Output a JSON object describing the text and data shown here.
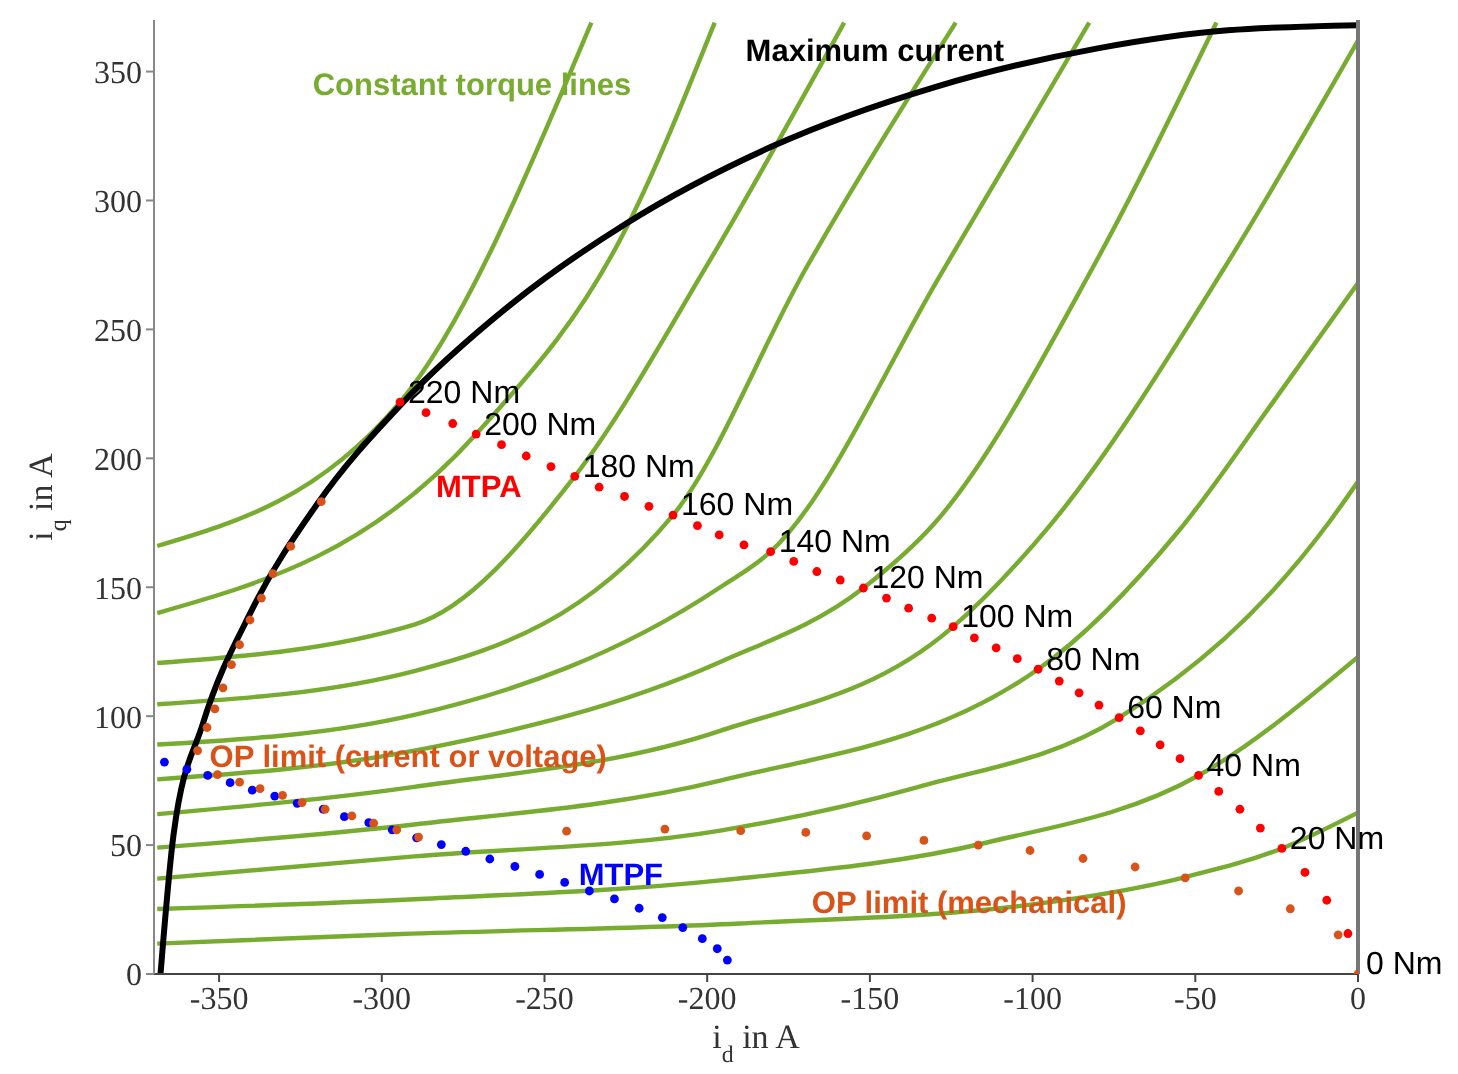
{
  "chart_data": {
    "type": "line",
    "xlabel": "i$_{d}$ in A",
    "ylabel": "i$_{q}$ in A",
    "xlim": [
      -370,
      0
    ],
    "ylim": [
      0,
      370
    ],
    "xticks": [
      -350,
      -300,
      -250,
      -200,
      -150,
      -100,
      -50,
      0
    ],
    "yticks": [
      0,
      50,
      100,
      150,
      200,
      250,
      300,
      350
    ],
    "grid": false,
    "legend": false,
    "line_style": "solid",
    "series": [
      {
        "name": "Constant torque lines",
        "color": "#77ac30",
        "x": [
          -369,
          -294.4,
          -235.6
        ],
        "values": [
          166,
          221.8,
          369
        ]
      },
      {
        "type": "line",
        "color": "#77ac30",
        "x": [
          -369,
          -271,
          -224.6,
          -197.7
        ],
        "values": [
          140,
          209.4,
          290,
          369
        ]
      },
      {
        "type": "line",
        "color": "#77ac30",
        "x": [
          -369,
          -290,
          -240.7,
          -200,
          -157.9
        ],
        "values": [
          120.6,
          135.5,
          193,
          275,
          369
        ]
      },
      {
        "type": "line",
        "color": "#77ac30",
        "x": [
          -369,
          -290,
          -210.5,
          -169.5,
          -123.6
        ],
        "values": [
          104.6,
          117.5,
          178,
          274,
          369
        ]
      },
      {
        "type": "line",
        "color": "#77ac30",
        "x": [
          -369,
          -290,
          -196,
          -180.5,
          -127,
          -82.6
        ],
        "values": [
          89,
          100.5,
          150,
          163.8,
          274,
          369
        ]
      },
      {
        "type": "line",
        "color": "#77ac30",
        "x": [
          -369,
          -290,
          -196,
          -152,
          -130,
          -81.5,
          -43.5
        ],
        "values": [
          75.5,
          86.6,
          121,
          149.7,
          175,
          274,
          369
        ]
      },
      {
        "type": "line",
        "color": "#77ac30",
        "x": [
          -369,
          -290,
          -196,
          -124.4,
          -94,
          -41,
          0
        ],
        "values": [
          62,
          72.6,
          94.3,
          134.7,
          175,
          274,
          362
        ]
      },
      {
        "type": "line",
        "color": "#77ac30",
        "x": [
          -369,
          -290,
          -196,
          -98.3,
          -55,
          -26,
          0
        ],
        "values": [
          49,
          58,
          75,
          118.2,
          172,
          222,
          268
        ]
      },
      {
        "type": "line",
        "color": "#77ac30",
        "x": [
          -369,
          -290,
          -196,
          -135,
          -73.4,
          -9,
          0
        ],
        "values": [
          37,
          45.6,
          55.6,
          72.6,
          99.4,
          175,
          191
        ]
      },
      {
        "type": "line",
        "color": "#77ac30",
        "x": [
          -369,
          -290,
          -196,
          -114,
          -49,
          0
        ],
        "values": [
          25.2,
          29,
          36.3,
          51,
          77,
          123
        ]
      },
      {
        "type": "line",
        "color": "#77ac30",
        "x": [
          -369,
          -294,
          -190,
          -100,
          -53,
          -23.4,
          0
        ],
        "values": [
          11.8,
          15.5,
          19.6,
          27,
          37.6,
          48.7,
          62.6
        ]
      },
      {
        "name": "Maximum current",
        "color": "#000000",
        "x": [
          -368,
          -364,
          -355,
          -340,
          -320,
          -294,
          -260,
          -225,
          -180,
          -130,
          -80,
          -40,
          0
        ],
        "values": [
          0,
          54,
          97,
          141,
          182,
          221,
          260,
          291,
          321,
          344,
          359,
          366,
          368
        ]
      },
      {
        "type": "scatter",
        "marker": "circle",
        "name": "MTPA",
        "color": "#ff0000",
        "x": [
          -294.4,
          -286.4,
          -278.2,
          -271,
          -263.2,
          -255.6,
          -248,
          -240.7,
          -233.2,
          -225.4,
          -217.9,
          -210.5,
          -203,
          -196.3,
          -188.7,
          -180.5,
          -173.4,
          -166.3,
          -159.1,
          -152,
          -144.9,
          -138.1,
          -131,
          -124.4,
          -117.9,
          -111.2,
          -104.7,
          -98.3,
          -91.8,
          -85.7,
          -79.6,
          -73.4,
          -66.9,
          -60.8,
          -54.7,
          -49,
          -42.8,
          -36.3,
          -30,
          -23.4,
          -16.3,
          -9.6,
          -3.1
        ],
        "values": [
          221.8,
          217.7,
          213.5,
          209.4,
          205.3,
          200.9,
          196.8,
          193,
          188.8,
          185.2,
          181.4,
          178,
          173.9,
          170.3,
          166.4,
          163.8,
          160,
          156.1,
          152.8,
          149.7,
          145.8,
          141.9,
          138,
          134.7,
          130.4,
          126.5,
          122.3,
          118.2,
          113.6,
          109,
          104.3,
          99.4,
          94.3,
          88.9,
          83.5,
          77,
          70.8,
          63.9,
          56.6,
          48.7,
          39.4,
          28.6,
          15.7
        ]
      },
      {
        "type": "scatter",
        "marker": "circle",
        "name": "MTPF",
        "color": "#0000ff",
        "x": [
          -366.8,
          -359.9,
          -353.5,
          -346.6,
          -339.8,
          -332.9,
          -326,
          -318,
          -311.5,
          -304,
          -296.8,
          -289.3,
          -281.7,
          -274.2,
          -266.8,
          -259.1,
          -251.5,
          -243.8,
          -236.2,
          -228.5,
          -220.9,
          -213.8,
          -207.5,
          -201.5,
          -196.9,
          -193.8
        ],
        "values": [
          82.2,
          79.4,
          77,
          74.2,
          71.3,
          69,
          66.2,
          63.9,
          61,
          58.7,
          55.9,
          52.8,
          50.2,
          47.6,
          44.6,
          41.7,
          38.6,
          35.5,
          32.2,
          29.1,
          25.5,
          21.9,
          18,
          13.7,
          9.8,
          5.4
        ]
      },
      {
        "type": "scatter",
        "marker": "circle",
        "name": "OP limit (curent or voltage)",
        "color": "#d95319",
        "x": [
          -356.6,
          -318.6,
          -328,
          -333.5,
          -337,
          -340.5,
          -343.7,
          -346.2,
          -348.8,
          -351.3,
          -353.7,
          -350.5,
          -343.7,
          -337.4,
          -330.5,
          -324.5,
          -317.4,
          -309.2,
          -302.5,
          -295.4,
          -288.7
        ],
        "values": [
          86.6,
          183.2,
          165.9,
          155.3,
          145.8,
          137.3,
          127.7,
          120,
          111,
          102.8,
          95.6,
          77.3,
          74.4,
          71.9,
          69.3,
          66.5,
          63.9,
          61.3,
          58.5,
          55.9,
          53.1
        ]
      },
      {
        "type": "scatter",
        "marker": "circle",
        "name": "OP limit (mechanical)",
        "color": "#d95319",
        "x": [
          -169.7,
          -243.2,
          -213,
          -189.7,
          -151,
          -133.4,
          -116.7,
          -100.8,
          -84.5,
          -68.5,
          -53.1,
          -36.7,
          -20.8,
          -6.1,
          0
        ],
        "values": [
          54.9,
          55.4,
          56.2,
          55.6,
          53.6,
          51.8,
          50,
          47.9,
          44.8,
          41.5,
          37.3,
          32.2,
          25.3,
          15.2,
          0
        ]
      }
    ],
    "annotations": [
      {
        "text": "220 Nm",
        "x": -294.4,
        "y": 221.8
      },
      {
        "text": "200 Nm",
        "x": -271,
        "y": 209.4
      },
      {
        "text": "180 Nm",
        "x": -240.7,
        "y": 193
      },
      {
        "text": "160 Nm",
        "x": -210.5,
        "y": 178
      },
      {
        "text": "140 Nm",
        "x": -180.5,
        "y": 163.8
      },
      {
        "text": "120 Nm",
        "x": -152,
        "y": 149.7
      },
      {
        "text": "100 Nm",
        "x": -124.4,
        "y": 134.7
      },
      {
        "text": "80 Nm",
        "x": -98.3,
        "y": 118.2
      },
      {
        "text": "60 Nm",
        "x": -73.4,
        "y": 99.4
      },
      {
        "text": "40 Nm",
        "x": -49,
        "y": 77
      },
      {
        "text": "20 Nm",
        "x": -23.4,
        "y": 48.7
      },
      {
        "text": "0 Nm",
        "x": 0,
        "y": 0
      }
    ]
  }
}
